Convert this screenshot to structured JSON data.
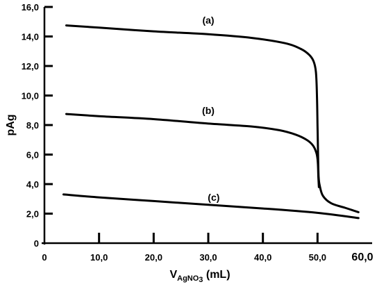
{
  "chart_data": {
    "type": "line",
    "title": "",
    "xlabel": {
      "prefix": "V",
      "sub1": "AgNO",
      "sub2": "3",
      "suffix": " (mL)"
    },
    "ylabel": "pAg",
    "xlim": [
      0,
      60
    ],
    "ylim": [
      0,
      16
    ],
    "xticks": [
      {
        "value": 0,
        "label": "0"
      },
      {
        "value": 10,
        "label": "10,0"
      },
      {
        "value": 20,
        "label": "20,0"
      },
      {
        "value": 30,
        "label": "30,0"
      },
      {
        "value": 40,
        "label": "40,0"
      },
      {
        "value": 50,
        "label": "50,0"
      },
      {
        "value": 60,
        "label": "60,0"
      }
    ],
    "yticks": [
      {
        "value": 0,
        "label": "0"
      },
      {
        "value": 2,
        "label": "2,0"
      },
      {
        "value": 4,
        "label": "4,0"
      },
      {
        "value": 6,
        "label": "6,0"
      },
      {
        "value": 8,
        "label": "8,0"
      },
      {
        "value": 10,
        "label": "10,0"
      },
      {
        "value": 12,
        "label": "12,0"
      },
      {
        "value": 14,
        "label": "14,0"
      },
      {
        "value": 16,
        "label": "16,0"
      }
    ],
    "grid": false,
    "series": [
      {
        "label": "(a)",
        "label_at": [
          30.0,
          15.1
        ],
        "points": [
          [
            4.0,
            14.75
          ],
          [
            10,
            14.6
          ],
          [
            20,
            14.35
          ],
          [
            30,
            14.15
          ],
          [
            38,
            13.9
          ],
          [
            44,
            13.55
          ],
          [
            47,
            13.15
          ],
          [
            48.5,
            12.75
          ],
          [
            49.3,
            12.3
          ],
          [
            49.7,
            11.6
          ],
          [
            49.9,
            10.0
          ],
          [
            50.0,
            8.0
          ],
          [
            50.1,
            6.0
          ],
          [
            50.2,
            4.5
          ],
          [
            50.4,
            3.9
          ],
          [
            51,
            3.2
          ],
          [
            52.5,
            2.7
          ],
          [
            55,
            2.4
          ],
          [
            57.5,
            2.1
          ]
        ]
      },
      {
        "label": "(b)",
        "label_at": [
          30.0,
          9.0
        ],
        "points": [
          [
            4.0,
            8.75
          ],
          [
            10,
            8.6
          ],
          [
            20,
            8.4
          ],
          [
            30,
            8.1
          ],
          [
            38,
            7.9
          ],
          [
            43,
            7.65
          ],
          [
            46,
            7.35
          ],
          [
            48,
            7.0
          ],
          [
            49.2,
            6.6
          ],
          [
            49.8,
            6.1
          ],
          [
            50.05,
            5.5
          ],
          [
            50.15,
            4.5
          ],
          [
            50.25,
            3.8
          ]
        ]
      },
      {
        "label": "(c)",
        "label_at": [
          31.0,
          3.1
        ],
        "points": [
          [
            3.5,
            3.3
          ],
          [
            10,
            3.1
          ],
          [
            20,
            2.85
          ],
          [
            30,
            2.6
          ],
          [
            40,
            2.35
          ],
          [
            50,
            2.05
          ],
          [
            57.5,
            1.7
          ]
        ]
      }
    ]
  }
}
